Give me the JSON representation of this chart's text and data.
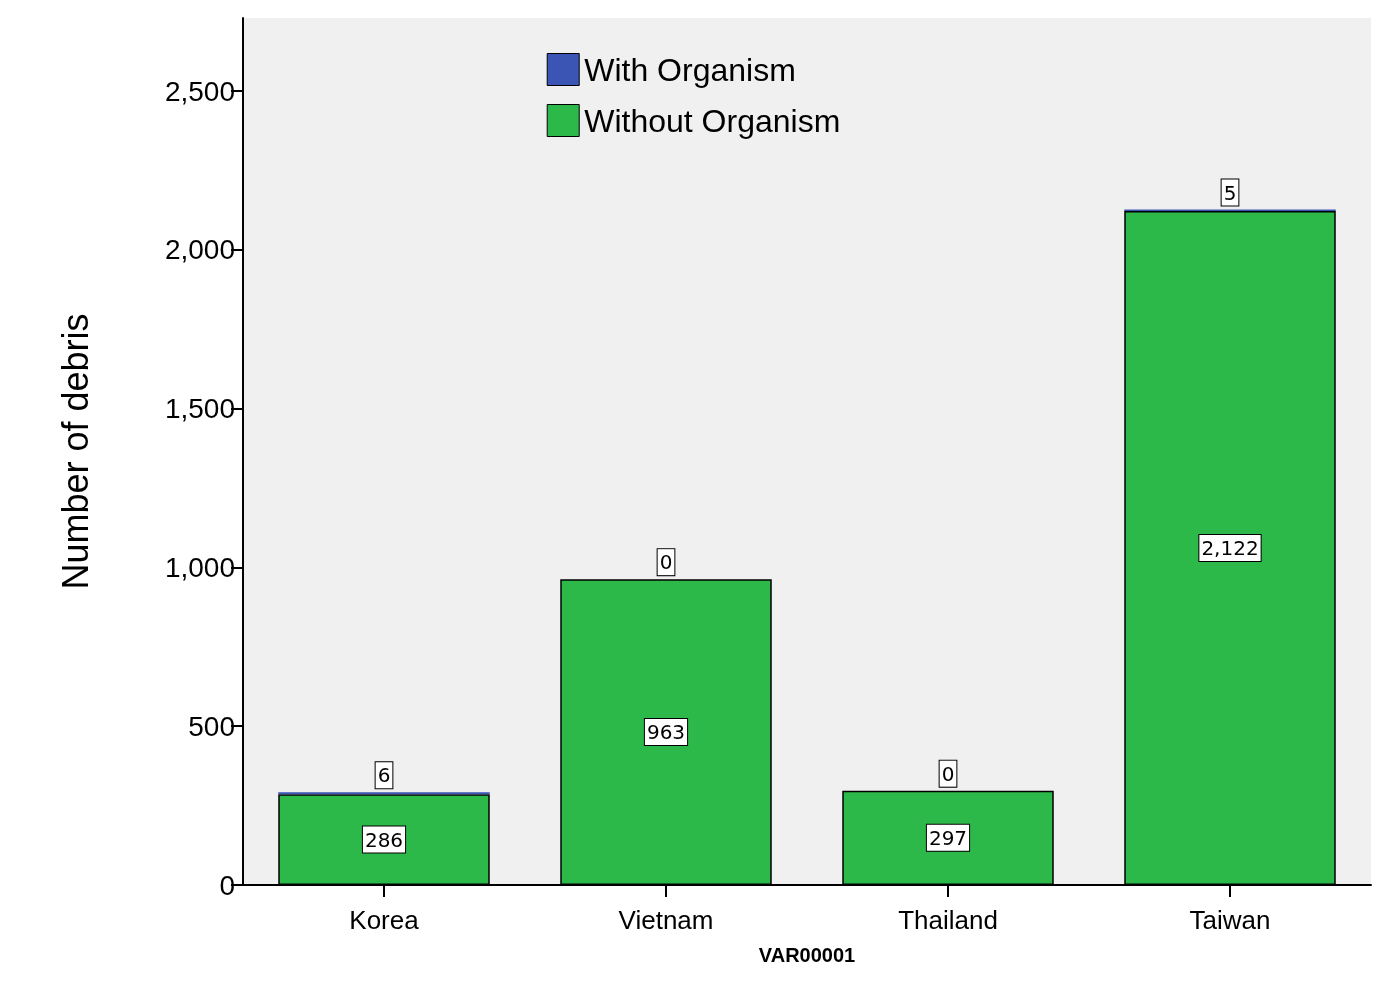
{
  "chart_data": {
    "type": "bar",
    "stacked": true,
    "xlabel": "VAR00001",
    "ylabel": "Number of debris",
    "categories": [
      "Korea",
      "Vietnam",
      "Thailand",
      "Taiwan"
    ],
    "series": [
      {
        "name": "Without Organism",
        "color": "#2db84a",
        "values": [
          286,
          963,
          297,
          2122
        ],
        "value_labels": [
          "286",
          "963",
          "297",
          "2,122"
        ]
      },
      {
        "name": "With Organism",
        "color": "#3a55b4",
        "values": [
          6,
          0,
          0,
          5
        ],
        "value_labels": [
          "6",
          "0",
          "0",
          "5"
        ]
      }
    ],
    "ylim": [
      0,
      2730
    ],
    "yticks": [
      0,
      {
        "value": 500,
        "label": "500"
      },
      {
        "value": 1000,
        "label": "1,000"
      },
      {
        "value": 1500,
        "label": "1,500"
      },
      {
        "value": 2000,
        "label": "2,000"
      },
      {
        "value": 2500,
        "label": "2,500"
      }
    ],
    "legend": "top",
    "grid": false
  }
}
